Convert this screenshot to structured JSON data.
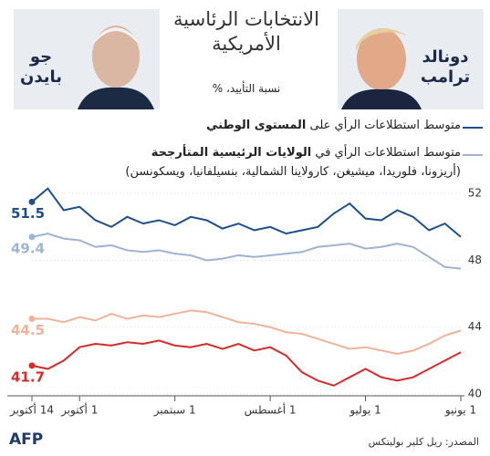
{
  "chart_data": {
    "type": "line",
    "title": "الانتخابات الرئاسية الأمريكية",
    "subtitle": "نسبة التأييد، %",
    "candidates": [
      {
        "first": "جو",
        "last": "بايدن"
      },
      {
        "first": "دونالد",
        "last": "ترامب"
      }
    ],
    "legend_items": [
      {
        "text": "متوسط استطلاعات الرأي على",
        "bold": "المستوى الوطني",
        "color": "#1f4e8c"
      },
      {
        "text": "متوسط استطلاعات الرأي في",
        "bold": "الولايات الرئيسية المتأرجحة",
        "note": "(أريزونا، فلوريدا، ميشيغن، كارولاينا الشمالية، بنسيلفانيا، ويسكونسن)",
        "color": "#9db4d3"
      }
    ],
    "x_reversed": true,
    "categories": [
      "1 يونيو",
      null,
      null,
      null,
      null,
      null,
      "1 يوليو",
      null,
      null,
      null,
      null,
      null,
      "1 أغسطس",
      null,
      null,
      null,
      null,
      null,
      "1 سبتمبر",
      null,
      null,
      null,
      null,
      null,
      "1 أكتوبر",
      null,
      null,
      "14 أكتوبر"
    ],
    "series": [
      {
        "color": "#1f4e8c",
        "values": [
          49.4,
          50.2,
          49.8,
          50.6,
          51.0,
          50.4,
          50.5,
          51.4,
          50.8,
          50.0,
          49.8,
          49.6,
          50.0,
          49.8,
          50.2,
          49.9,
          50.4,
          50.6,
          50.1,
          50.4,
          50.2,
          50.6,
          50.0,
          50.4,
          51.2,
          51.0,
          52.3,
          51.5
        ]
      },
      {
        "color": "#9db4d3",
        "values": [
          47.5,
          47.6,
          48.2,
          48.8,
          49.0,
          48.8,
          48.7,
          49.0,
          48.9,
          48.8,
          48.5,
          48.4,
          48.3,
          48.2,
          48.3,
          48.1,
          48.0,
          48.3,
          48.4,
          48.6,
          48.5,
          48.6,
          48.9,
          48.8,
          49.2,
          49.3,
          49.6,
          49.4
        ]
      },
      {
        "color": "#f0b39a",
        "values": [
          43.8,
          43.5,
          43.0,
          42.6,
          42.4,
          42.6,
          42.8,
          42.7,
          43.0,
          43.3,
          43.6,
          43.7,
          44.0,
          44.2,
          44.3,
          44.6,
          44.9,
          45.0,
          44.8,
          44.6,
          44.7,
          44.5,
          44.8,
          44.4,
          44.6,
          44.3,
          44.5,
          44.5
        ]
      },
      {
        "color": "#d62b2b",
        "values": [
          42.5,
          42.0,
          41.5,
          41.0,
          40.8,
          41.0,
          41.5,
          41.0,
          40.5,
          40.8,
          41.3,
          42.3,
          42.8,
          42.6,
          43.0,
          42.7,
          43.0,
          42.8,
          42.9,
          43.2,
          43.0,
          43.1,
          42.9,
          43.0,
          42.8,
          42.0,
          41.5,
          41.7
        ]
      }
    ],
    "ylim": [
      40,
      52.5
    ],
    "yticks": [
      40,
      44,
      48,
      52
    ],
    "source": "المصدر: ريل كلير بوليتكس",
    "logo": "AFP"
  }
}
